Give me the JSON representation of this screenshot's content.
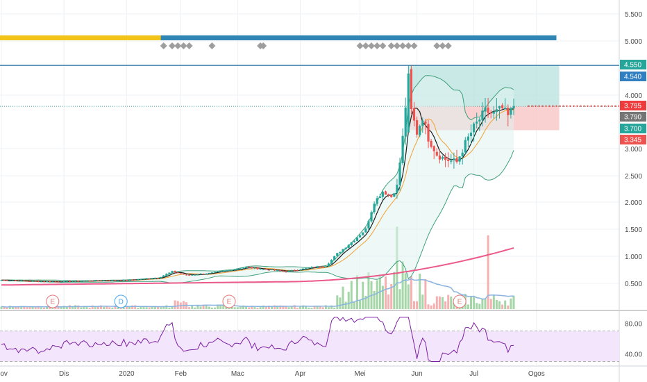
{
  "chart_data": {
    "type": "candlestick",
    "colors": {
      "up": "#26a69a",
      "down": "#ef5350",
      "ma_fast": "#1b1b1b",
      "ma_mid": "#f0a030",
      "ma_slow": "#ec5a8a",
      "bollinger": "#3fa07a",
      "volume_ma": "#8ab4e0",
      "rsi": "#7b1fa2",
      "rsi_band": "#f3e5fb",
      "range_up": "#b2dfdb",
      "range_down": "#f8c6c6",
      "h_line": "#1e6ea0",
      "marker": "#9e9e9e",
      "session_bar_yellow": "#f2c318",
      "session_bar_blue": "#2f86b5"
    },
    "y_axis": {
      "ticks": [
        "5.500",
        "5.000",
        "4.000",
        "3.000",
        "2.500",
        "2.000",
        "1.500",
        "1.000",
        "0.500"
      ],
      "tick_values": [
        5500,
        5000,
        4000,
        3000,
        2500,
        2000,
        1500,
        1000,
        500
      ],
      "range": [
        100,
        5800
      ]
    },
    "price_badges": [
      {
        "label": "4.550",
        "value": 4550,
        "color": "#26a69a"
      },
      {
        "label": "4.540",
        "value": 4540,
        "color": "#2f7fc1"
      },
      {
        "label": "3.795",
        "value": 3795,
        "color": "#ef3b3b"
      },
      {
        "label": "3.790",
        "value": 3790,
        "color": "#757575"
      },
      {
        "label": "3.700",
        "value": 3700,
        "color": "#26a69a"
      },
      {
        "label": "3.345",
        "value": 3345,
        "color": "#ef5350"
      }
    ],
    "x_axis": {
      "labels": [
        "Nov",
        "Dis",
        "2020",
        "Feb",
        "Mac",
        "Apr",
        "Mei",
        "Jun",
        "Jul",
        "Ogos"
      ],
      "positions": [
        0,
        22,
        44,
        63,
        83,
        105,
        126,
        146,
        166,
        188
      ]
    },
    "events": [
      {
        "label": "E",
        "index": 18,
        "color": "#e57373"
      },
      {
        "label": "D",
        "index": 42,
        "color": "#42a5f5"
      },
      {
        "label": "E",
        "index": 80,
        "color": "#e57373"
      },
      {
        "label": "E",
        "index": 161,
        "color": "#e57373"
      }
    ],
    "rsi": {
      "ticks": [
        "80.00",
        "40.00"
      ],
      "tick_values": [
        80,
        40
      ],
      "range": [
        25,
        95
      ],
      "upper": 70,
      "lower": 30
    },
    "key_points": [
      [
        0,
        560
      ],
      [
        10,
        540
      ],
      [
        20,
        530
      ],
      [
        30,
        545
      ],
      [
        44,
        560
      ],
      [
        55,
        600
      ],
      [
        60,
        720
      ],
      [
        65,
        650
      ],
      [
        72,
        680
      ],
      [
        80,
        740
      ],
      [
        86,
        800
      ],
      [
        92,
        760
      ],
      [
        100,
        720
      ],
      [
        110,
        800
      ],
      [
        114,
        820
      ],
      [
        118,
        1050
      ],
      [
        124,
        1300
      ],
      [
        128,
        1500
      ],
      [
        131,
        2000
      ],
      [
        134,
        2200
      ],
      [
        137,
        2100
      ],
      [
        139,
        2300
      ],
      [
        141,
        3200
      ],
      [
        143,
        4400
      ],
      [
        144,
        3700
      ],
      [
        146,
        3300
      ],
      [
        148,
        3600
      ],
      [
        150,
        3200
      ],
      [
        153,
        2900
      ],
      [
        156,
        2800
      ],
      [
        160,
        2750
      ],
      [
        163,
        3100
      ],
      [
        166,
        3400
      ],
      [
        170,
        3700
      ],
      [
        173,
        3650
      ],
      [
        176,
        3750
      ],
      [
        178,
        3600
      ],
      [
        180,
        3795
      ]
    ],
    "volume_spikes": [
      [
        130,
        0.32
      ],
      [
        139,
        0.95
      ],
      [
        141,
        0.55
      ],
      [
        171,
        0.85
      ]
    ]
  }
}
